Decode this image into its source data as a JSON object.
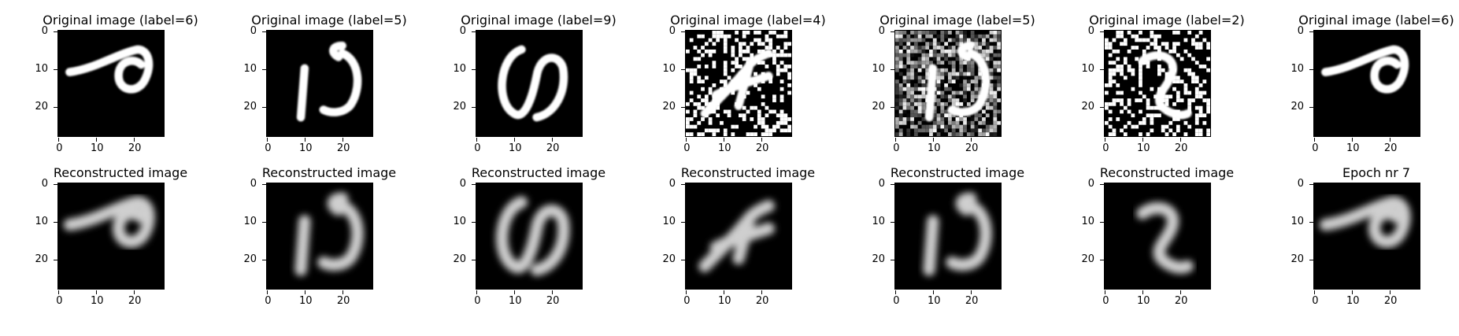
{
  "chart_data": [
    {
      "type": "heatmap",
      "title": "Original image (label=6)",
      "digit": "6",
      "noise": 0.0,
      "xticks": [
        "0",
        "10",
        "20"
      ],
      "yticks": [
        "0",
        "10",
        "20"
      ]
    },
    {
      "type": "heatmap",
      "title": "Original image (label=5)",
      "digit": "5",
      "noise": 0.0,
      "xticks": [
        "0",
        "10",
        "20"
      ],
      "yticks": [
        "0",
        "10",
        "20"
      ]
    },
    {
      "type": "heatmap",
      "title": "Original image (label=9)",
      "digit": "9",
      "noise": 0.0,
      "xticks": [
        "0",
        "10",
        "20"
      ],
      "yticks": [
        "0",
        "10",
        "20"
      ]
    },
    {
      "type": "heatmap",
      "title": "Original image (label=4)",
      "digit": "4",
      "noise": 0.35,
      "xticks": [
        "0",
        "10",
        "20"
      ],
      "yticks": [
        "0",
        "10",
        "20"
      ]
    },
    {
      "type": "heatmap",
      "title": "Original image (label=5)",
      "digit": "5",
      "noise": 0.75,
      "xticks": [
        "0",
        "10",
        "20"
      ],
      "yticks": [
        "0",
        "10",
        "20"
      ]
    },
    {
      "type": "heatmap",
      "title": "Original image (label=2)",
      "digit": "2",
      "noise": 0.35,
      "xticks": [
        "0",
        "10",
        "20"
      ],
      "yticks": [
        "0",
        "10",
        "20"
      ]
    },
    {
      "type": "heatmap",
      "title": "Original image (label=6)",
      "digit": "6",
      "noise": 0.0,
      "xticks": [
        "0",
        "10",
        "20"
      ],
      "yticks": [
        "0",
        "10",
        "20"
      ]
    },
    {
      "type": "heatmap",
      "title": "Reconstructed image",
      "digit": "6",
      "noise": 0.0,
      "xticks": [
        "0",
        "10",
        "20"
      ],
      "yticks": [
        "0",
        "10",
        "20"
      ]
    },
    {
      "type": "heatmap",
      "title": "Reconstructed image",
      "digit": "5",
      "noise": 0.0,
      "xticks": [
        "0",
        "10",
        "20"
      ],
      "yticks": [
        "0",
        "10",
        "20"
      ]
    },
    {
      "type": "heatmap",
      "title": "Reconstructed image",
      "digit": "9",
      "noise": 0.0,
      "xticks": [
        "0",
        "10",
        "20"
      ],
      "yticks": [
        "0",
        "10",
        "20"
      ]
    },
    {
      "type": "heatmap",
      "title": "Reconstructed image",
      "digit": "4",
      "noise": 0.0,
      "xticks": [
        "0",
        "10",
        "20"
      ],
      "yticks": [
        "0",
        "10",
        "20"
      ]
    },
    {
      "type": "heatmap",
      "title": "Reconstructed image",
      "digit": "5",
      "noise": 0.0,
      "xticks": [
        "0",
        "10",
        "20"
      ],
      "yticks": [
        "0",
        "10",
        "20"
      ]
    },
    {
      "type": "heatmap",
      "title": "Reconstructed image",
      "digit": "2",
      "noise": 0.0,
      "xticks": [
        "0",
        "10",
        "20"
      ],
      "yticks": [
        "0",
        "10",
        "20"
      ]
    },
    {
      "type": "heatmap",
      "title": "Epoch nr 7",
      "digit": "6",
      "noise": 0.0,
      "xticks": [
        "0",
        "10",
        "20"
      ],
      "yticks": [
        "0",
        "10",
        "20"
      ]
    }
  ],
  "colormap": "gray"
}
